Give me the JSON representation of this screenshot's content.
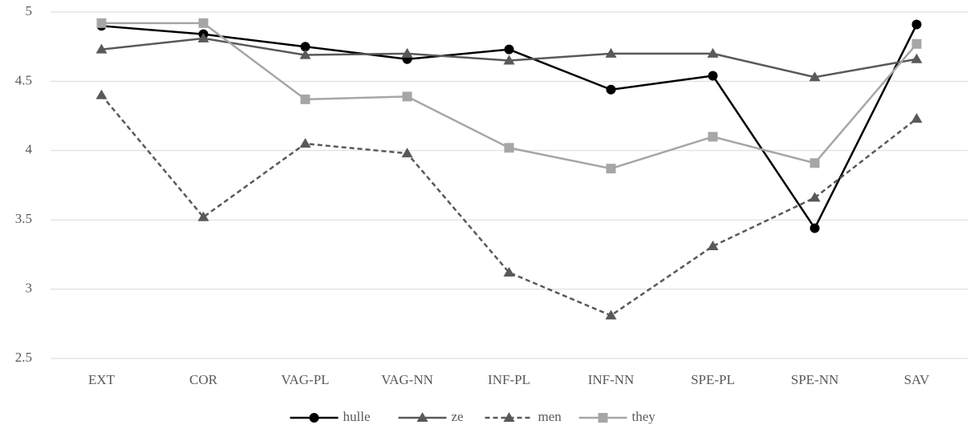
{
  "chart_data": {
    "type": "line",
    "categories": [
      "EXT",
      "COR",
      "VAG-PL",
      "VAG-NN",
      "INF-PL",
      "INF-NN",
      "SPE-PL",
      "SPE-NN",
      "SAV"
    ],
    "series": [
      {
        "name": "hulle",
        "color": "#000000",
        "marker": "circle",
        "dashed": false,
        "values": [
          4.9,
          4.84,
          4.75,
          4.66,
          4.73,
          4.44,
          4.54,
          3.44,
          4.91
        ]
      },
      {
        "name": "ze",
        "color": "#595959",
        "marker": "triangle",
        "dashed": false,
        "values": [
          4.73,
          4.81,
          4.69,
          4.7,
          4.65,
          4.7,
          4.7,
          4.53,
          4.66
        ]
      },
      {
        "name": "men",
        "color": "#595959",
        "marker": "triangle",
        "dashed": true,
        "values": [
          4.4,
          3.52,
          4.05,
          3.98,
          3.12,
          2.81,
          3.31,
          3.66,
          4.23
        ]
      },
      {
        "name": "they",
        "color": "#a6a6a6",
        "marker": "square",
        "dashed": false,
        "values": [
          4.92,
          4.92,
          4.37,
          4.39,
          4.02,
          3.87,
          4.1,
          3.91,
          4.77
        ]
      }
    ],
    "ylim": [
      2.5,
      5
    ],
    "yticks": [
      2.5,
      3,
      3.5,
      4,
      4.5,
      5
    ],
    "grid": true,
    "legend": "bottom"
  }
}
